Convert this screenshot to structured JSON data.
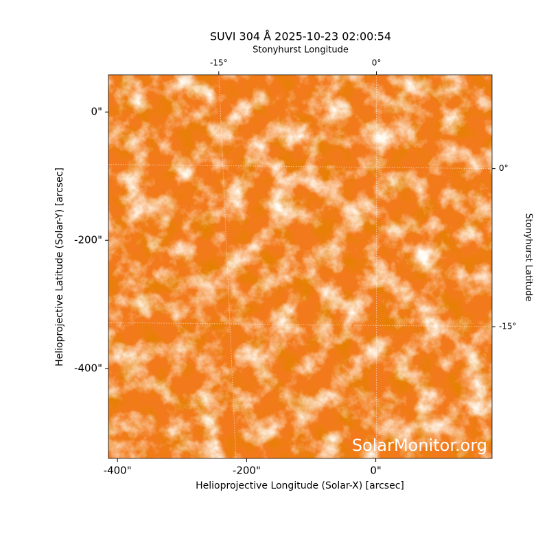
{
  "chart_data": {
    "type": "image",
    "title": "SUVI 304 Å 2025-10-23 02:00:54",
    "x_label": "Helioprojective Longitude (Solar-X) [arcsec]",
    "y_label": "Helioprojective Latitude (Solar-Y) [arcsec]",
    "x2_label": "Stonyhurst Longitude",
    "y2_label": "Stonyhurst Latitude",
    "watermark": "SolarMonitor.org",
    "xlim": [
      -414,
      180
    ],
    "ylim": [
      -540,
      58
    ],
    "xticks": [
      {
        "value": -400,
        "label": "-400\""
      },
      {
        "value": -200,
        "label": "-200\""
      },
      {
        "value": 0,
        "label": "0\""
      }
    ],
    "yticks": [
      {
        "value": -400,
        "label": "-400\""
      },
      {
        "value": -200,
        "label": "-200\""
      },
      {
        "value": 0,
        "label": "0\""
      }
    ],
    "x2lim": [
      -25.5,
      11
    ],
    "x2ticks": [
      {
        "value": -15,
        "label": "-15°"
      },
      {
        "value": 0,
        "label": "0°"
      }
    ],
    "y2lim": [
      -27.5,
      8.9
    ],
    "y2ticks": [
      {
        "value": 0,
        "label": "0°"
      },
      {
        "value": -15,
        "label": "-15°"
      }
    ],
    "grid": true
  }
}
